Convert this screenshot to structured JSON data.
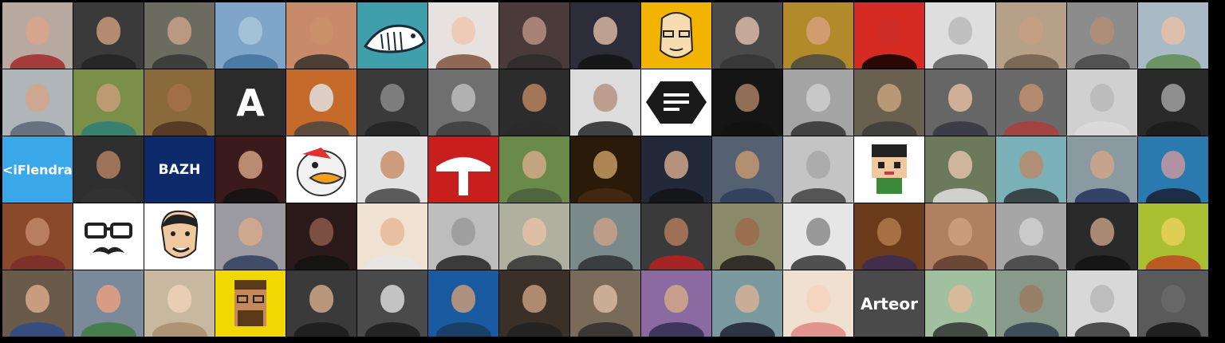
{
  "gallery": {
    "rows": 5,
    "cols": 17,
    "tiles": [
      {
        "bg": "#b8a9a0",
        "skin": "#d9a68a",
        "cloth": "#a02020"
      },
      {
        "bg": "#3a3a3a",
        "skin": "#c89a7a",
        "cloth": "#222"
      },
      {
        "bg": "#6b6b60",
        "skin": "#c8a088",
        "cloth": "#333"
      },
      {
        "bg": "#7fa6c9",
        "skin": "#a9c6d9",
        "cloth": "#3f6f98"
      },
      {
        "bg": "#c98a6a",
        "skin": "#c9906a",
        "cloth": "#2c2c2c"
      },
      {
        "bg": "#3fa0ac",
        "icon": "whale-icon"
      },
      {
        "bg": "#e7e2df",
        "skin": "#f0c6b0",
        "cloth": "#7a4a33"
      },
      {
        "bg": "#4a3a3a",
        "skin": "#b89080",
        "cloth": "#2a2a2a"
      },
      {
        "bg": "#2d2d3a",
        "skin": "#d7b5a0",
        "cloth": "#111"
      },
      {
        "bg": "#f2b400",
        "icon": "cartoon-face-icon"
      },
      {
        "bg": "#4a4a4a",
        "skin": "#d9b8a8",
        "cloth": "#333"
      },
      {
        "bg": "#b38a2a",
        "skin": "#d6a07a",
        "cloth": "#444"
      },
      {
        "bg": "#d52b22",
        "skin": "#cc2f28",
        "cloth": "#000"
      },
      {
        "bg": "#dedede",
        "skin": "#bbb",
        "cloth": "#555"
      },
      {
        "bg": "#b5a188",
        "skin": "#c79f82",
        "cloth": "#6a5b48"
      },
      {
        "bg": "#8c8c8c",
        "skin": "#b58e76",
        "cloth": "#444"
      },
      {
        "bg": "#a9b9c5",
        "skin": "#e6c0a6",
        "cloth": "#5b8a4f"
      },
      {
        "bg": "#b0b5ba",
        "skin": "#d4a488",
        "cloth": "#556070"
      },
      {
        "bg": "#7a8f48",
        "skin": "#c99e7a",
        "cloth": "#2b7c7b"
      },
      {
        "bg": "#8a6a3a",
        "skin": "#a5704a",
        "cloth": "#4a2f20"
      },
      {
        "bg": "#2b2b2b",
        "label": "A",
        "labelSize": "46px",
        "labelColor": "#ffffff"
      },
      {
        "bg": "#c66a2a",
        "skin": "#e0e0e0",
        "cloth": "#444"
      },
      {
        "bg": "#3a3a3a",
        "skin": "#8a8a8a",
        "cloth": "#222"
      },
      {
        "bg": "#6f6f6f",
        "skin": "#bdbdbd",
        "cloth": "#3a3a3a"
      },
      {
        "bg": "#2c2c2c",
        "skin": "#b98460",
        "cloth": "#2a2a2a"
      },
      {
        "bg": "#dcdcdc",
        "skin": "#b69280",
        "cloth": "#1a1a1a"
      },
      {
        "bg": "#ffffff",
        "icon": "menu-hexagon-icon"
      },
      {
        "bg": "#151515",
        "skin": "#a97e62",
        "cloth": "#111"
      },
      {
        "bg": "#a4a4a4",
        "skin": "#cfcfcf",
        "cloth": "#2a2a2a"
      },
      {
        "bg": "#6a6050",
        "skin": "#c7a27e",
        "cloth": "#3a3a3a"
      },
      {
        "bg": "#666666",
        "skin": "#e2bca0",
        "cloth": "#334"
      },
      {
        "bg": "#6a6a6a",
        "skin": "#bf8f6e",
        "cloth": "#b23a3a"
      },
      {
        "bg": "#d0d0d0",
        "skin": "#b8b8b8",
        "cloth": "#dcdcdc"
      },
      {
        "bg": "#2a2a2a",
        "skin": "#a0a0a0",
        "cloth": "#1a1a1a"
      },
      {
        "bg": "#3aa8e8",
        "label": "<iFlendra>",
        "labelSize": "16px",
        "labelColor": "#ffffff"
      },
      {
        "bg": "#2f2f2f",
        "skin": "#b08060",
        "cloth": "#333"
      },
      {
        "bg": "#0d2a6a",
        "label": "BAZH",
        "labelSize": "17px",
        "labelColor": "#ffffff"
      },
      {
        "bg": "#3a1a1a",
        "skin": "#d0a080",
        "cloth": "#111"
      },
      {
        "bg": "#ffffff",
        "icon": "duck-cartoon-icon"
      },
      {
        "bg": "#e2e2e2",
        "skin": "#c88f6a",
        "cloth": "#3a3a3a"
      },
      {
        "bg": "#c81e1e",
        "icon": "t-logo-icon"
      },
      {
        "bg": "#6a8a4a",
        "skin": "#d2a88a",
        "cloth": "#4a5a3a"
      },
      {
        "bg": "#2a1a0a",
        "skin": "#c69a60",
        "cloth": "#4a2a10"
      },
      {
        "bg": "#222a3a",
        "skin": "#cfa58a",
        "cloth": "#111"
      },
      {
        "bg": "#556070",
        "skin": "#c39870",
        "cloth": "#2b3b5b"
      },
      {
        "bg": "#c4c4c4",
        "skin": "#a8a8a8",
        "cloth": "#3a3a3a"
      },
      {
        "bg": "#ffffff",
        "icon": "pixel-character-icon"
      },
      {
        "bg": "#6a7a5a",
        "skin": "#e0c0a8",
        "cloth": "#e8e8e8"
      },
      {
        "bg": "#7ab0b8",
        "skin": "#b88a6a",
        "cloth": "#2a2a2a"
      },
      {
        "bg": "#8a9aa0",
        "skin": "#d0a48a",
        "cloth": "#1a2a5a"
      },
      {
        "bg": "#2a7ab0",
        "skin": "#c898a0",
        "cloth": "#1a1a2a"
      },
      {
        "bg": "#8a4a2a",
        "skin": "#c2886a",
        "cloth": "#7a2a2a"
      },
      {
        "bg": "#ffffff",
        "icon": "glasses-mustache-icon"
      },
      {
        "bg": "#ffffff",
        "icon": "cartoon-man-icon"
      },
      {
        "bg": "#9a9aa0",
        "skin": "#d6aa8c",
        "cloth": "#2a3a5a"
      },
      {
        "bg": "#2a1a1a",
        "skin": "#8a5a4a",
        "cloth": "#111"
      },
      {
        "bg": "#f0e2d2",
        "skin": "#e8b89a",
        "cloth": "#e6e6e6"
      },
      {
        "bg": "#bdbdbd",
        "skin": "#9a9a9a",
        "cloth": "#1a1a1a"
      },
      {
        "bg": "#b0b0a0",
        "skin": "#e6c2a6",
        "cloth": "#2a2a2a"
      },
      {
        "bg": "#7a8a8a",
        "skin": "#c8a08a",
        "cloth": "#2a2a2a"
      },
      {
        "bg": "#3a3a3a",
        "skin": "#b07a5a",
        "cloth": "#c02020"
      },
      {
        "bg": "#8a8a6a",
        "skin": "#9a6a4a",
        "cloth": "#1a1a1a"
      },
      {
        "bg": "#e6e6e6",
        "skin": "#8a8a8a",
        "cloth": "#2a2a2a"
      },
      {
        "bg": "#6a3a1a",
        "skin": "#b07a4a",
        "cloth": "#3a2a5a"
      },
      {
        "bg": "#b08060",
        "skin": "#d0a080",
        "cloth": "#5a3a2a"
      },
      {
        "bg": "#a6a6a6",
        "skin": "#d0d0d0",
        "cloth": "#3a3a3a"
      },
      {
        "bg": "#2a2a2a",
        "skin": "#c09a80",
        "cloth": "#111"
      },
      {
        "bg": "#a8c030",
        "skin": "#e8d05a",
        "cloth": "#c04020"
      },
      {
        "bg": "#6a5a4a",
        "skin": "#d8a888",
        "cloth": "#2a4a8a"
      },
      {
        "bg": "#7a8a9a",
        "skin": "#e6a080",
        "cloth": "#3a7a3a"
      },
      {
        "bg": "#c8b8a0",
        "skin": "#f0d0b8",
        "cloth": "#a88a6a"
      },
      {
        "bg": "#f0d800",
        "icon": "pixel-face-icon"
      },
      {
        "bg": "#3a3a3a",
        "skin": "#d0a88a",
        "cloth": "#1a1a1a"
      },
      {
        "bg": "#4a4a4a",
        "skin": "#d8d8d8",
        "cloth": "#1a1a1a"
      },
      {
        "bg": "#1a5aa0",
        "skin": "#c89a7a",
        "cloth": "#1a3a5a"
      },
      {
        "bg": "#3a3028",
        "skin": "#c69a7a",
        "cloth": "#222"
      },
      {
        "bg": "#7a6a5a",
        "skin": "#d8b8a0",
        "cloth": "#2a2a2a"
      },
      {
        "bg": "#8a6aa0",
        "skin": "#d0a888",
        "cloth": "#2a2a4a"
      },
      {
        "bg": "#7a9aa0",
        "skin": "#d8b096",
        "cloth": "#1a1a2a"
      },
      {
        "bg": "#f0e0d0",
        "skin": "#f4d2c0",
        "cloth": "#e08080"
      },
      {
        "bg": "#4a4a4a",
        "label": "Arteor",
        "labelSize": "20px",
        "labelColor": "#ffffff"
      },
      {
        "bg": "#a0c0a0",
        "skin": "#e0b898",
        "cloth": "#2a2a2a"
      },
      {
        "bg": "#8a9a8a",
        "skin": "#9a7a60",
        "cloth": "#2a3a4a"
      },
      {
        "bg": "#d8d8d8",
        "skin": "#b8b8b8",
        "cloth": "#2a2a2a"
      },
      {
        "bg": "#5a5a5a",
        "skin": "#6a6a6a",
        "cloth": "#111"
      }
    ]
  }
}
